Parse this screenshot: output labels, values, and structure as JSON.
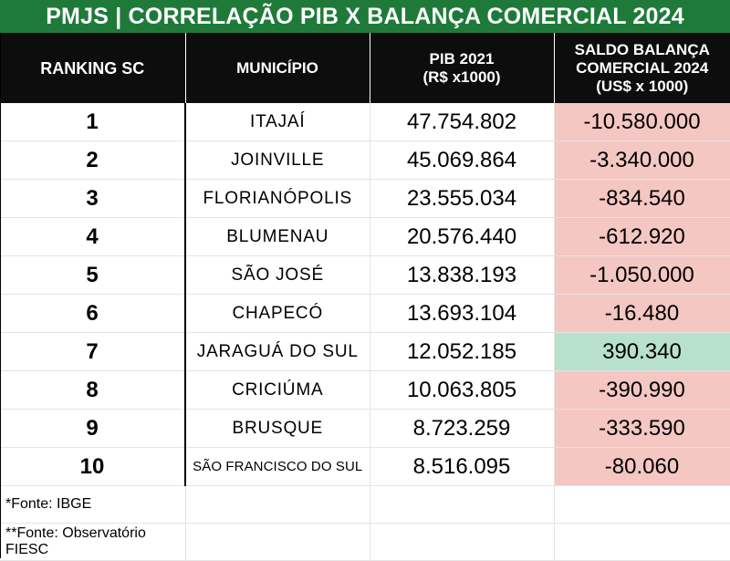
{
  "title": "PMJS | CORRELAÇÃO PIB X BALANÇA COMERCIAL 2024",
  "headers": {
    "rank": "RANKING SC",
    "city": "MUNICÍPIO",
    "pib_line1": "PIB 2021",
    "pib_line2": "(R$ x1000)",
    "saldo_line1": "SALDO BALANÇA",
    "saldo_line2": "COMERCIAL 2024",
    "saldo_line3": "(US$ x 1000)"
  },
  "rows": [
    {
      "rank": "1",
      "city": "ITAJAÍ",
      "pib": "47.754.802",
      "saldo": "-10.580.000"
    },
    {
      "rank": "2",
      "city": "JOINVILLE",
      "pib": "45.069.864",
      "saldo": "-3.340.000"
    },
    {
      "rank": "3",
      "city": "FLORIANÓPOLIS",
      "pib": "23.555.034",
      "saldo": "-834.540"
    },
    {
      "rank": "4",
      "city": "BLUMENAU",
      "pib": "20.576.440",
      "saldo": "-612.920"
    },
    {
      "rank": "5",
      "city": "SÃO JOSÉ",
      "pib": "13.838.193",
      "saldo": "-1.050.000"
    },
    {
      "rank": "6",
      "city": "CHAPECÓ",
      "pib": "13.693.104",
      "saldo": "-16.480"
    },
    {
      "rank": "7",
      "city": "JARAGUÁ DO SUL",
      "pib": "12.052.185",
      "saldo": "390.340"
    },
    {
      "rank": "8",
      "city": "CRICIÚMA",
      "pib": "10.063.805",
      "saldo": "-390.990"
    },
    {
      "rank": "9",
      "city": "BRUSQUE",
      "pib": "8.723.259",
      "saldo": "-333.590"
    },
    {
      "rank": "10",
      "city": "SÃO FRANCISCO DO SUL",
      "pib": "8.516.095",
      "saldo": "-80.060"
    }
  ],
  "footnotes": {
    "fonte1": "*Fonte: IBGE",
    "fonte2": "**Fonte: Observatório FIESC"
  },
  "colors": {
    "title_bg": "#1f7a3a",
    "header_bg": "#0d0d0d",
    "negative_bg": "#f4c7c3",
    "positive_bg": "#b7e1cd"
  }
}
